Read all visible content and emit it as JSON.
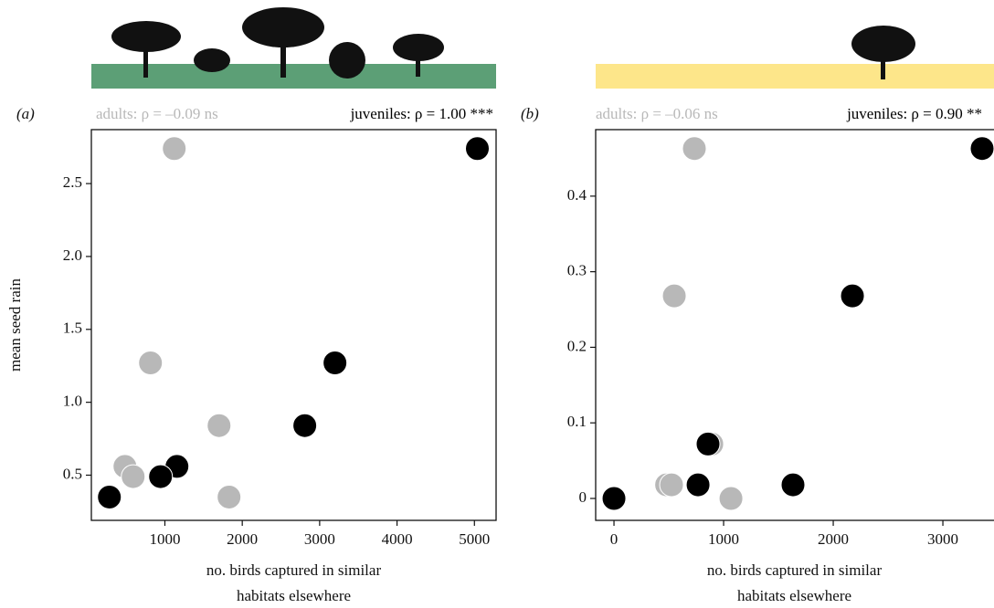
{
  "chart_data": [
    {
      "type": "scatter",
      "panel": "(a)",
      "ylabel": "mean seed rain",
      "xlabel": [
        "no. birds captured in similar",
        "habitats elsewhere"
      ],
      "xlim": [
        50,
        5280
      ],
      "ylim": [
        0.19,
        2.87
      ],
      "xticks": [
        1000,
        2000,
        3000,
        4000,
        5000
      ],
      "yticks": [
        0.5,
        {
          "value": 1.0,
          "label": "1.0"
        },
        1.5,
        {
          "value": 2.0,
          "label": "2.0"
        },
        2.5
      ],
      "series": [
        {
          "name": "adults: ρ = –0.09 ns",
          "color": "#b8b8b8",
          "x": [
            1121,
            814,
            1700,
            484,
            590,
            1829
          ],
          "values": [
            2.74,
            1.27,
            0.84,
            0.56,
            0.49,
            0.35
          ]
        },
        {
          "name": "juveniles: ρ = 1.00 ***",
          "color": "#000000",
          "x": [
            5038,
            3198,
            2808,
            1156,
            944,
            283
          ],
          "values": [
            2.74,
            1.27,
            0.84,
            0.56,
            0.49,
            0.35
          ]
        }
      ]
    },
    {
      "type": "scatter",
      "panel": "(b)",
      "xlabel": [
        "no. birds captured in similar",
        "habitats elsewhere"
      ],
      "xlim": [
        -167,
        3458
      ],
      "ylim": [
        -0.029,
        0.488
      ],
      "xticks": [
        0,
        1000,
        2000,
        3000
      ],
      "yticks": [
        0,
        0.1,
        0.2,
        0.3,
        0.4
      ],
      "series": [
        {
          "name": "adults: ρ = –0.06 ns",
          "color": "#b8b8b8",
          "x": [
            733,
            550,
            892,
            480,
            525,
            1067
          ],
          "values": [
            0.463,
            0.268,
            0.072,
            0.018,
            0.018,
            0
          ]
        },
        {
          "name": "juveniles: ρ = 0.90 **",
          "color": "#000000",
          "x": [
            3358,
            2175,
            858,
            767,
            1633,
            0
          ],
          "values": [
            0.463,
            0.268,
            0.072,
            0.018,
            0.018,
            0
          ]
        }
      ]
    }
  ]
}
